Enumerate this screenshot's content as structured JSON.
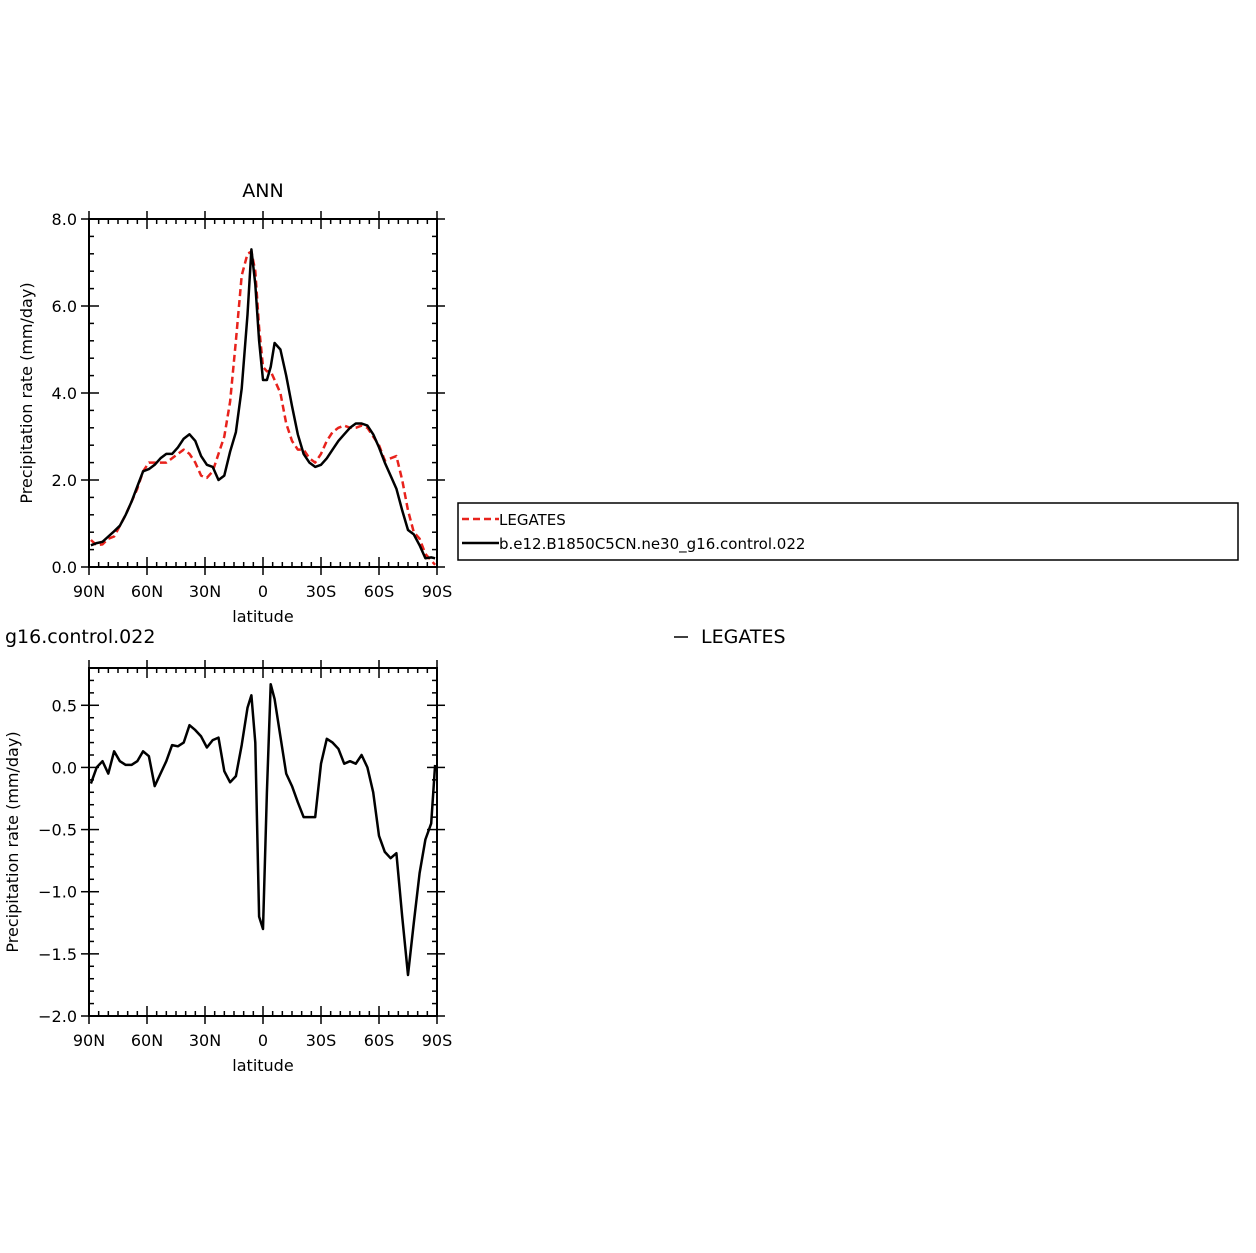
{
  "chart_data": [
    {
      "type": "line",
      "title": "ANN",
      "xlabel": "latitude",
      "ylabel": "Precipitation rate (mm/day)",
      "xlim": [
        90,
        -90
      ],
      "ylim": [
        0.0,
        8.0
      ],
      "xticks": [
        90,
        60,
        30,
        0,
        -30,
        -60,
        -90
      ],
      "xtick_labels": [
        "90N",
        "60N",
        "30N",
        "0",
        "30S",
        "60S",
        "90S"
      ],
      "yticks": [
        0.0,
        2.0,
        4.0,
        6.0,
        8.0
      ],
      "ytick_labels": [
        "0.0",
        "2.0",
        "4.0",
        "6.0",
        "8.0"
      ],
      "legend_position": "outside-right",
      "grid": false,
      "series": [
        {
          "name": "LEGATES",
          "color": "#e8221c",
          "dash": "dashed",
          "x": [
            89,
            86,
            83,
            80,
            77,
            74,
            71,
            68,
            65,
            62,
            59,
            56,
            53,
            50,
            47,
            44,
            41,
            38,
            35,
            32,
            29,
            26,
            23,
            20,
            17,
            14,
            11,
            8,
            6,
            4,
            2,
            0,
            -2,
            -4,
            -6,
            -9,
            -12,
            -15,
            -18,
            -21,
            -24,
            -27,
            -30,
            -33,
            -36,
            -39,
            -42,
            -45,
            -48,
            -51,
            -54,
            -57,
            -60,
            -63,
            -66,
            -69,
            -72,
            -75,
            -78,
            -81,
            -84,
            -87,
            -89
          ],
          "y": [
            0.62,
            0.5,
            0.52,
            0.65,
            0.7,
            0.95,
            1.2,
            1.5,
            1.8,
            2.2,
            2.4,
            2.4,
            2.4,
            2.4,
            2.5,
            2.6,
            2.7,
            2.6,
            2.4,
            2.1,
            2.05,
            2.2,
            2.6,
            3.0,
            3.8,
            5.2,
            6.7,
            7.2,
            7.25,
            6.8,
            5.5,
            4.6,
            4.5,
            4.5,
            4.3,
            4.0,
            3.3,
            2.9,
            2.7,
            2.7,
            2.5,
            2.4,
            2.6,
            2.9,
            3.1,
            3.2,
            3.25,
            3.2,
            3.2,
            3.25,
            3.2,
            3.0,
            2.8,
            2.45,
            2.5,
            2.55,
            2.0,
            1.3,
            0.8,
            0.65,
            0.3,
            0.15,
            0.05
          ]
        },
        {
          "name": "b.e12.B1850C5CN.ne30_g16.control.022",
          "color": "#000000",
          "dash": "solid",
          "x": [
            89,
            86,
            83,
            80,
            77,
            74,
            71,
            68,
            65,
            62,
            59,
            56,
            53,
            50,
            47,
            44,
            41,
            38,
            35,
            32,
            29,
            26,
            23,
            20,
            17,
            14,
            11,
            8,
            6,
            4,
            2,
            0,
            -2,
            -4,
            -6,
            -9,
            -12,
            -15,
            -18,
            -21,
            -24,
            -27,
            -30,
            -33,
            -36,
            -39,
            -42,
            -45,
            -48,
            -51,
            -54,
            -57,
            -60,
            -63,
            -66,
            -69,
            -72,
            -75,
            -78,
            -81,
            -84,
            -87,
            -89
          ],
          "y": [
            0.5,
            0.55,
            0.58,
            0.7,
            0.82,
            0.95,
            1.2,
            1.5,
            1.85,
            2.2,
            2.25,
            2.35,
            2.5,
            2.6,
            2.6,
            2.75,
            2.95,
            3.05,
            2.9,
            2.55,
            2.35,
            2.3,
            2.0,
            2.1,
            2.65,
            3.1,
            4.1,
            5.8,
            7.3,
            6.5,
            5.2,
            4.3,
            4.3,
            4.6,
            5.15,
            5.0,
            4.4,
            3.7,
            3.05,
            2.6,
            2.4,
            2.3,
            2.35,
            2.5,
            2.7,
            2.9,
            3.05,
            3.2,
            3.3,
            3.3,
            3.25,
            3.05,
            2.75,
            2.4,
            2.1,
            1.8,
            1.3,
            0.85,
            0.75,
            0.5,
            0.2,
            0.22,
            0.2
          ]
        }
      ]
    },
    {
      "type": "line",
      "title": "g16.control.022",
      "title_right": "LEGATES",
      "xlabel": "latitude",
      "ylabel": "Precipitation rate (mm/day)",
      "xlim": [
        90,
        -90
      ],
      "ylim": [
        -2.0,
        0.8
      ],
      "xticks": [
        90,
        60,
        30,
        0,
        -30,
        -60,
        -90
      ],
      "xtick_labels": [
        "90N",
        "60N",
        "30N",
        "0",
        "30S",
        "60S",
        "90S"
      ],
      "yticks": [
        0.5,
        0.0,
        -0.5,
        -1.0,
        -1.5,
        -2.0
      ],
      "ytick_labels": [
        "0.5",
        "0.0",
        "−0.5",
        "−1.0",
        "−1.5",
        "−2.0"
      ],
      "grid": false,
      "series": [
        {
          "color": "#000000",
          "dash": "solid",
          "x": [
            89,
            86,
            83,
            80,
            77,
            74,
            71,
            68,
            65,
            62,
            59,
            56,
            53,
            50,
            47,
            44,
            41,
            38,
            35,
            32,
            29,
            26,
            23,
            20,
            17,
            14,
            11,
            8,
            6,
            4,
            2,
            0,
            -2,
            -4,
            -6,
            -9,
            -12,
            -15,
            -18,
            -21,
            -24,
            -27,
            -30,
            -33,
            -36,
            -39,
            -42,
            -45,
            -48,
            -51,
            -54,
            -57,
            -60,
            -63,
            -66,
            -69,
            -72,
            -75,
            -78,
            -81,
            -84,
            -87,
            -89
          ],
          "y": [
            -0.13,
            0.0,
            0.05,
            -0.05,
            0.13,
            0.05,
            0.02,
            0.02,
            0.05,
            0.13,
            0.09,
            -0.15,
            -0.05,
            0.05,
            0.18,
            0.17,
            0.2,
            0.34,
            0.3,
            0.25,
            0.16,
            0.22,
            0.24,
            -0.03,
            -0.12,
            -0.07,
            0.18,
            0.48,
            0.58,
            0.2,
            -1.2,
            -1.3,
            -0.2,
            0.67,
            0.55,
            0.25,
            -0.05,
            -0.15,
            -0.28,
            -0.4,
            -0.4,
            -0.4,
            0.03,
            0.23,
            0.2,
            0.15,
            0.03,
            0.05,
            0.03,
            0.1,
            0.0,
            -0.2,
            -0.55,
            -0.68,
            -0.73,
            -0.69,
            -1.2,
            -1.67,
            -1.25,
            -0.85,
            -0.58,
            -0.45,
            0.02
          ]
        }
      ]
    }
  ]
}
